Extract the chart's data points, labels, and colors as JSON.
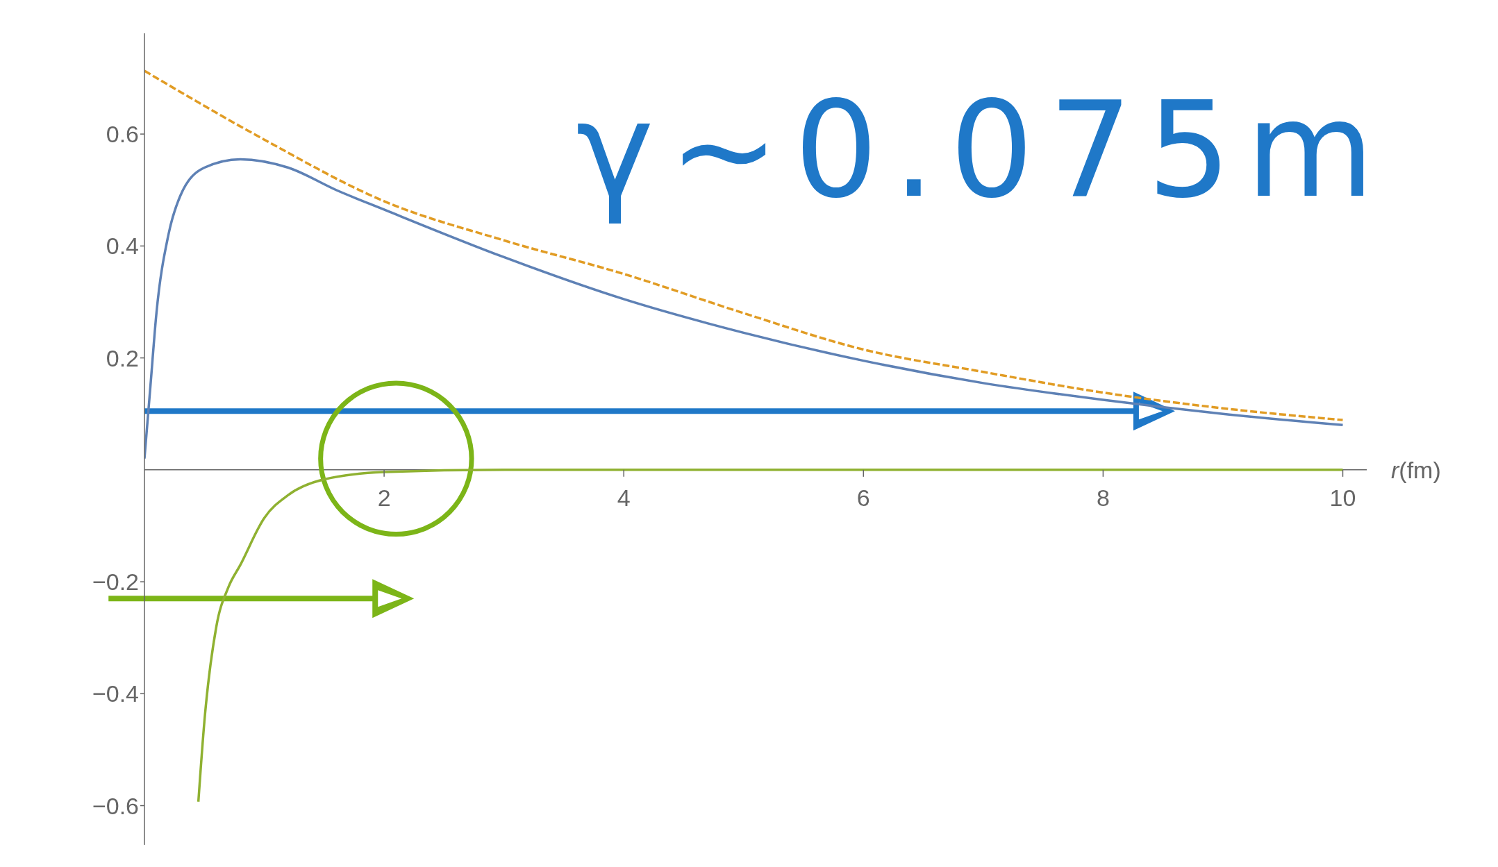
{
  "chart_data": {
    "type": "line",
    "xlabel": "r(fm)",
    "xlim": [
      0,
      10.2
    ],
    "ylim": [
      -0.67,
      0.78
    ],
    "xticks": [
      2,
      4,
      6,
      8,
      10
    ],
    "yticks": [
      {
        "value": -0.6,
        "label": "−0.6"
      },
      {
        "value": -0.4,
        "label": "−0.4"
      },
      {
        "value": -0.2,
        "label": "−0.2"
      },
      0.2,
      0.4,
      0.6
    ],
    "marker": "none",
    "annotations": [
      "γ∼0.075m"
    ],
    "series": [
      {
        "color": "#e19c24",
        "line_style": "dashed",
        "x": [
          0,
          1,
          2,
          3,
          4,
          5,
          6,
          7,
          8,
          9,
          10
        ],
        "values": [
          0.713,
          0.59,
          0.48,
          0.41,
          0.35,
          0.28,
          0.215,
          0.175,
          0.138,
          0.11,
          0.089
        ]
      },
      {
        "color": "#5e81b5",
        "line_style": "solid",
        "x": [
          0,
          0.05,
          0.1,
          0.2,
          0.3,
          0.5,
          0.8,
          1.2,
          1.6,
          2,
          3,
          4,
          5,
          6,
          7,
          8,
          9,
          10
        ],
        "values": [
          0.02,
          0.15,
          0.28,
          0.42,
          0.49,
          0.54,
          0.555,
          0.54,
          0.5,
          0.465,
          0.38,
          0.305,
          0.245,
          0.195,
          0.155,
          0.125,
          0.1,
          0.08
        ]
      },
      {
        "color": "#8fb131",
        "line_style": "solid",
        "x": [
          0.45,
          0.5,
          0.6,
          0.7,
          0.8,
          1,
          1.2,
          1.5,
          2,
          3,
          4,
          6,
          8,
          10
        ],
        "values": [
          -0.593,
          -0.45,
          -0.28,
          -0.21,
          -0.17,
          -0.086,
          -0.045,
          -0.017,
          -0.004,
          0,
          0,
          0,
          0,
          0
        ]
      }
    ]
  }
}
